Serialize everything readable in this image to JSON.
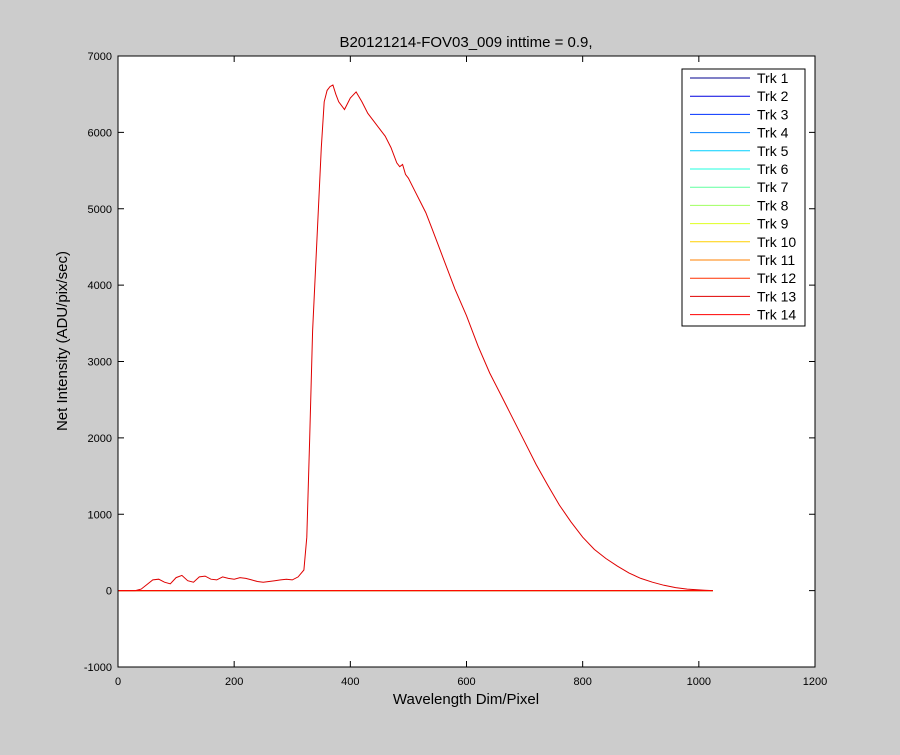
{
  "chart_data": {
    "type": "line",
    "title": "B20121214-FOV03_009 inttime = 0.9,",
    "xlabel": "Wavelength Dim/Pixel",
    "ylabel": "Net Intensity (ADU/pix/sec)",
    "xlim": [
      0,
      1200
    ],
    "ylim": [
      -1000,
      7000
    ],
    "xticks": [
      0,
      200,
      400,
      600,
      800,
      1000,
      1200
    ],
    "yticks": [
      -1000,
      0,
      1000,
      2000,
      3000,
      4000,
      5000,
      6000,
      7000
    ],
    "legend_position": "top-right",
    "series": [
      {
        "name": "Trk 1",
        "color": "#00008f",
        "x": [
          0,
          1024
        ],
        "y": [
          0,
          0
        ]
      },
      {
        "name": "Trk 2",
        "color": "#0000df",
        "x": [
          0,
          1024
        ],
        "y": [
          0,
          0
        ]
      },
      {
        "name": "Trk 3",
        "color": "#0030ff",
        "x": [
          0,
          1024
        ],
        "y": [
          0,
          0
        ]
      },
      {
        "name": "Trk 4",
        "color": "#0080ff",
        "x": [
          0,
          1024
        ],
        "y": [
          0,
          0
        ]
      },
      {
        "name": "Trk 5",
        "color": "#00cfff",
        "x": [
          0,
          1024
        ],
        "y": [
          0,
          0
        ]
      },
      {
        "name": "Trk 6",
        "color": "#20ffdf",
        "x": [
          0,
          1024
        ],
        "y": [
          0,
          0
        ]
      },
      {
        "name": "Trk 7",
        "color": "#60ff9f",
        "x": [
          0,
          1024
        ],
        "y": [
          0,
          0
        ]
      },
      {
        "name": "Trk 8",
        "color": "#9fff60",
        "x": [
          0,
          1024
        ],
        "y": [
          0,
          0
        ]
      },
      {
        "name": "Trk 9",
        "color": "#dfff20",
        "x": [
          0,
          1024
        ],
        "y": [
          0,
          0
        ]
      },
      {
        "name": "Trk 10",
        "color": "#ffcf00",
        "x": [
          0,
          1024
        ],
        "y": [
          0,
          0
        ]
      },
      {
        "name": "Trk 11",
        "color": "#ff8000",
        "x": [
          0,
          1024
        ],
        "y": [
          0,
          0
        ]
      },
      {
        "name": "Trk 12",
        "color": "#ff3000",
        "x": [
          0,
          1024
        ],
        "y": [
          0,
          0
        ]
      },
      {
        "name": "Trk 13",
        "color": "#df0000",
        "x": [
          0,
          30,
          40,
          50,
          60,
          70,
          80,
          90,
          100,
          110,
          120,
          130,
          140,
          150,
          160,
          170,
          180,
          190,
          200,
          210,
          220,
          230,
          240,
          250,
          260,
          270,
          280,
          290,
          300,
          310,
          320,
          325,
          330,
          335,
          340,
          345,
          350,
          355,
          360,
          365,
          370,
          375,
          380,
          390,
          400,
          410,
          420,
          430,
          440,
          450,
          460,
          470,
          480,
          485,
          490,
          495,
          500,
          510,
          520,
          530,
          540,
          550,
          560,
          570,
          580,
          600,
          620,
          640,
          660,
          680,
          700,
          720,
          740,
          760,
          780,
          800,
          820,
          840,
          860,
          880,
          900,
          920,
          940,
          960,
          980,
          1000,
          1010,
          1024
        ],
        "y": [
          0,
          0,
          20,
          80,
          140,
          150,
          110,
          90,
          170,
          200,
          130,
          110,
          180,
          190,
          150,
          140,
          180,
          160,
          150,
          170,
          160,
          140,
          120,
          110,
          120,
          130,
          140,
          150,
          140,
          180,
          270,
          700,
          2000,
          3400,
          4200,
          5000,
          5800,
          6400,
          6550,
          6600,
          6620,
          6500,
          6400,
          6300,
          6450,
          6530,
          6400,
          6250,
          6150,
          6050,
          5950,
          5800,
          5600,
          5550,
          5580,
          5450,
          5400,
          5250,
          5100,
          4950,
          4750,
          4550,
          4350,
          4150,
          3950,
          3600,
          3200,
          2850,
          2550,
          2250,
          1950,
          1650,
          1380,
          1120,
          900,
          700,
          540,
          420,
          320,
          230,
          160,
          110,
          70,
          40,
          20,
          10,
          5,
          0
        ]
      },
      {
        "name": "Trk 14",
        "color": "#ff0000",
        "x": [
          0,
          1024
        ],
        "y": [
          0,
          0
        ]
      }
    ]
  }
}
